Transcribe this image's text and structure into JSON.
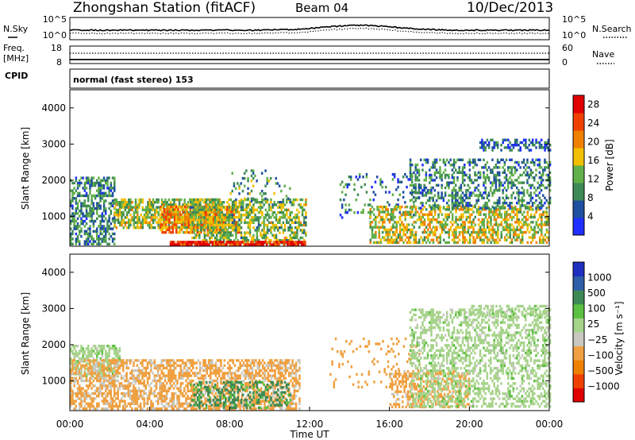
{
  "header": {
    "station": "Zhongshan Station (fitACF)",
    "beam": "Beam 04",
    "date": "10/Dec/2013"
  },
  "top_panels": {
    "nsky_label": "N.Sky",
    "nsky_ticks": [
      "10^5",
      "10^0"
    ],
    "nsky_right_ticks": [
      "10^5",
      "10^0"
    ],
    "nsearch_label": "N.Search",
    "freq_label_1": "Freq.",
    "freq_label_2": "[MHz]",
    "freq_ticks": [
      "18",
      "8"
    ],
    "nave_ticks": [
      "60",
      "0"
    ],
    "nave_label": "Nave",
    "cpid_label": "CPID",
    "cpid_text": "normal (fast stereo) 153"
  },
  "colors": {
    "power_scale": [
      "#1f2fff",
      "#1f4fa0",
      "#3e8a55",
      "#62b04a",
      "#f2c000",
      "#f08000",
      "#f04000",
      "#e00000"
    ],
    "velocity_scale": [
      "#e00000",
      "#f04000",
      "#f08000",
      "#f0a040",
      "#c8c8c0",
      "#a6d38a",
      "#5cc040",
      "#3e8a55",
      "#2e5fa8",
      "#1f2fc0"
    ],
    "gray": "#c8c8c0"
  },
  "chart_data": [
    {
      "type": "heatmap",
      "panel": "power",
      "xlabel": "",
      "ylabel": "Slant Range [km]",
      "colorbar_label": "Power [dB]",
      "xlim": [
        "00:00",
        "24:00"
      ],
      "ylim": [
        180,
        4500
      ],
      "yticks": [
        "1000",
        "2000",
        "3000",
        "4000"
      ],
      "colorbar_ticks": [
        "4",
        "8",
        "12",
        "16",
        "20",
        "24",
        "28"
      ],
      "colorbar_range": [
        0,
        30
      ],
      "scatter_regions": [
        {
          "t0": 0.0,
          "t1": 2.2,
          "r0": 250,
          "r1": 2100,
          "mean": 9,
          "density": 0.55
        },
        {
          "t0": 2.2,
          "t1": 7.5,
          "r0": 700,
          "r1": 1500,
          "mean": 14,
          "density": 0.7
        },
        {
          "t0": 4.5,
          "t1": 8.5,
          "r0": 550,
          "r1": 1300,
          "mean": 20,
          "density": 0.75
        },
        {
          "t0": 6.0,
          "t1": 11.8,
          "r0": 250,
          "r1": 1500,
          "mean": 13,
          "density": 0.55
        },
        {
          "t0": 5.0,
          "t1": 11.8,
          "r0": 200,
          "r1": 330,
          "mean": 27,
          "density": 0.9
        },
        {
          "t0": 8.0,
          "t1": 11.0,
          "r0": 1400,
          "r1": 2300,
          "mean": 10,
          "density": 0.15
        },
        {
          "t0": 13.5,
          "t1": 17.5,
          "r0": 1000,
          "r1": 2200,
          "mean": 8,
          "density": 0.12
        },
        {
          "t0": 15.0,
          "t1": 24.0,
          "r0": 300,
          "r1": 1300,
          "mean": 16,
          "density": 0.55
        },
        {
          "t0": 17.0,
          "t1": 24.0,
          "r0": 1200,
          "r1": 2600,
          "mean": 9,
          "density": 0.4
        },
        {
          "t0": 20.5,
          "t1": 24.0,
          "r0": 2800,
          "r1": 3150,
          "mean": 6,
          "density": 0.5
        }
      ]
    },
    {
      "type": "heatmap",
      "panel": "velocity",
      "xlabel": "Time UT",
      "ylabel": "Slant Range [km]",
      "colorbar_label": "Velocity [m s⁻¹]",
      "xlim": [
        "00:00",
        "24:00"
      ],
      "ylim": [
        180,
        4500
      ],
      "xticks": [
        "00:00",
        "04:00",
        "08:00",
        "12:00",
        "16:00",
        "20:00",
        "00:00"
      ],
      "yticks": [
        "1000",
        "2000",
        "3000",
        "4000"
      ],
      "colorbar_ticks": [
        "1000",
        "500",
        "100",
        "25",
        "−25",
        "−100",
        "−500",
        "−1000"
      ],
      "scatter_regions": [
        {
          "t0": 0.0,
          "t1": 2.5,
          "r0": 1100,
          "r1": 2000,
          "mean": 0,
          "density": 0.6
        },
        {
          "t0": 0.0,
          "t1": 11.5,
          "r0": 250,
          "r1": 1600,
          "mean": -150,
          "density": 0.6
        },
        {
          "t0": 6.0,
          "t1": 11.0,
          "r0": 250,
          "r1": 1000,
          "mean": 150,
          "density": 0.35
        },
        {
          "t0": 13.0,
          "t1": 17.5,
          "r0": 800,
          "r1": 2200,
          "mean": -300,
          "density": 0.12
        },
        {
          "t0": 16.0,
          "t1": 20.0,
          "r0": 250,
          "r1": 1300,
          "mean": -200,
          "density": 0.45
        },
        {
          "t0": 17.0,
          "t1": 24.0,
          "r0": 300,
          "r1": 3000,
          "mean": 0,
          "density": 0.45
        },
        {
          "t0": 20.0,
          "t1": 24.0,
          "r0": 2800,
          "r1": 3100,
          "mean": 0,
          "density": 0.4
        }
      ]
    }
  ]
}
